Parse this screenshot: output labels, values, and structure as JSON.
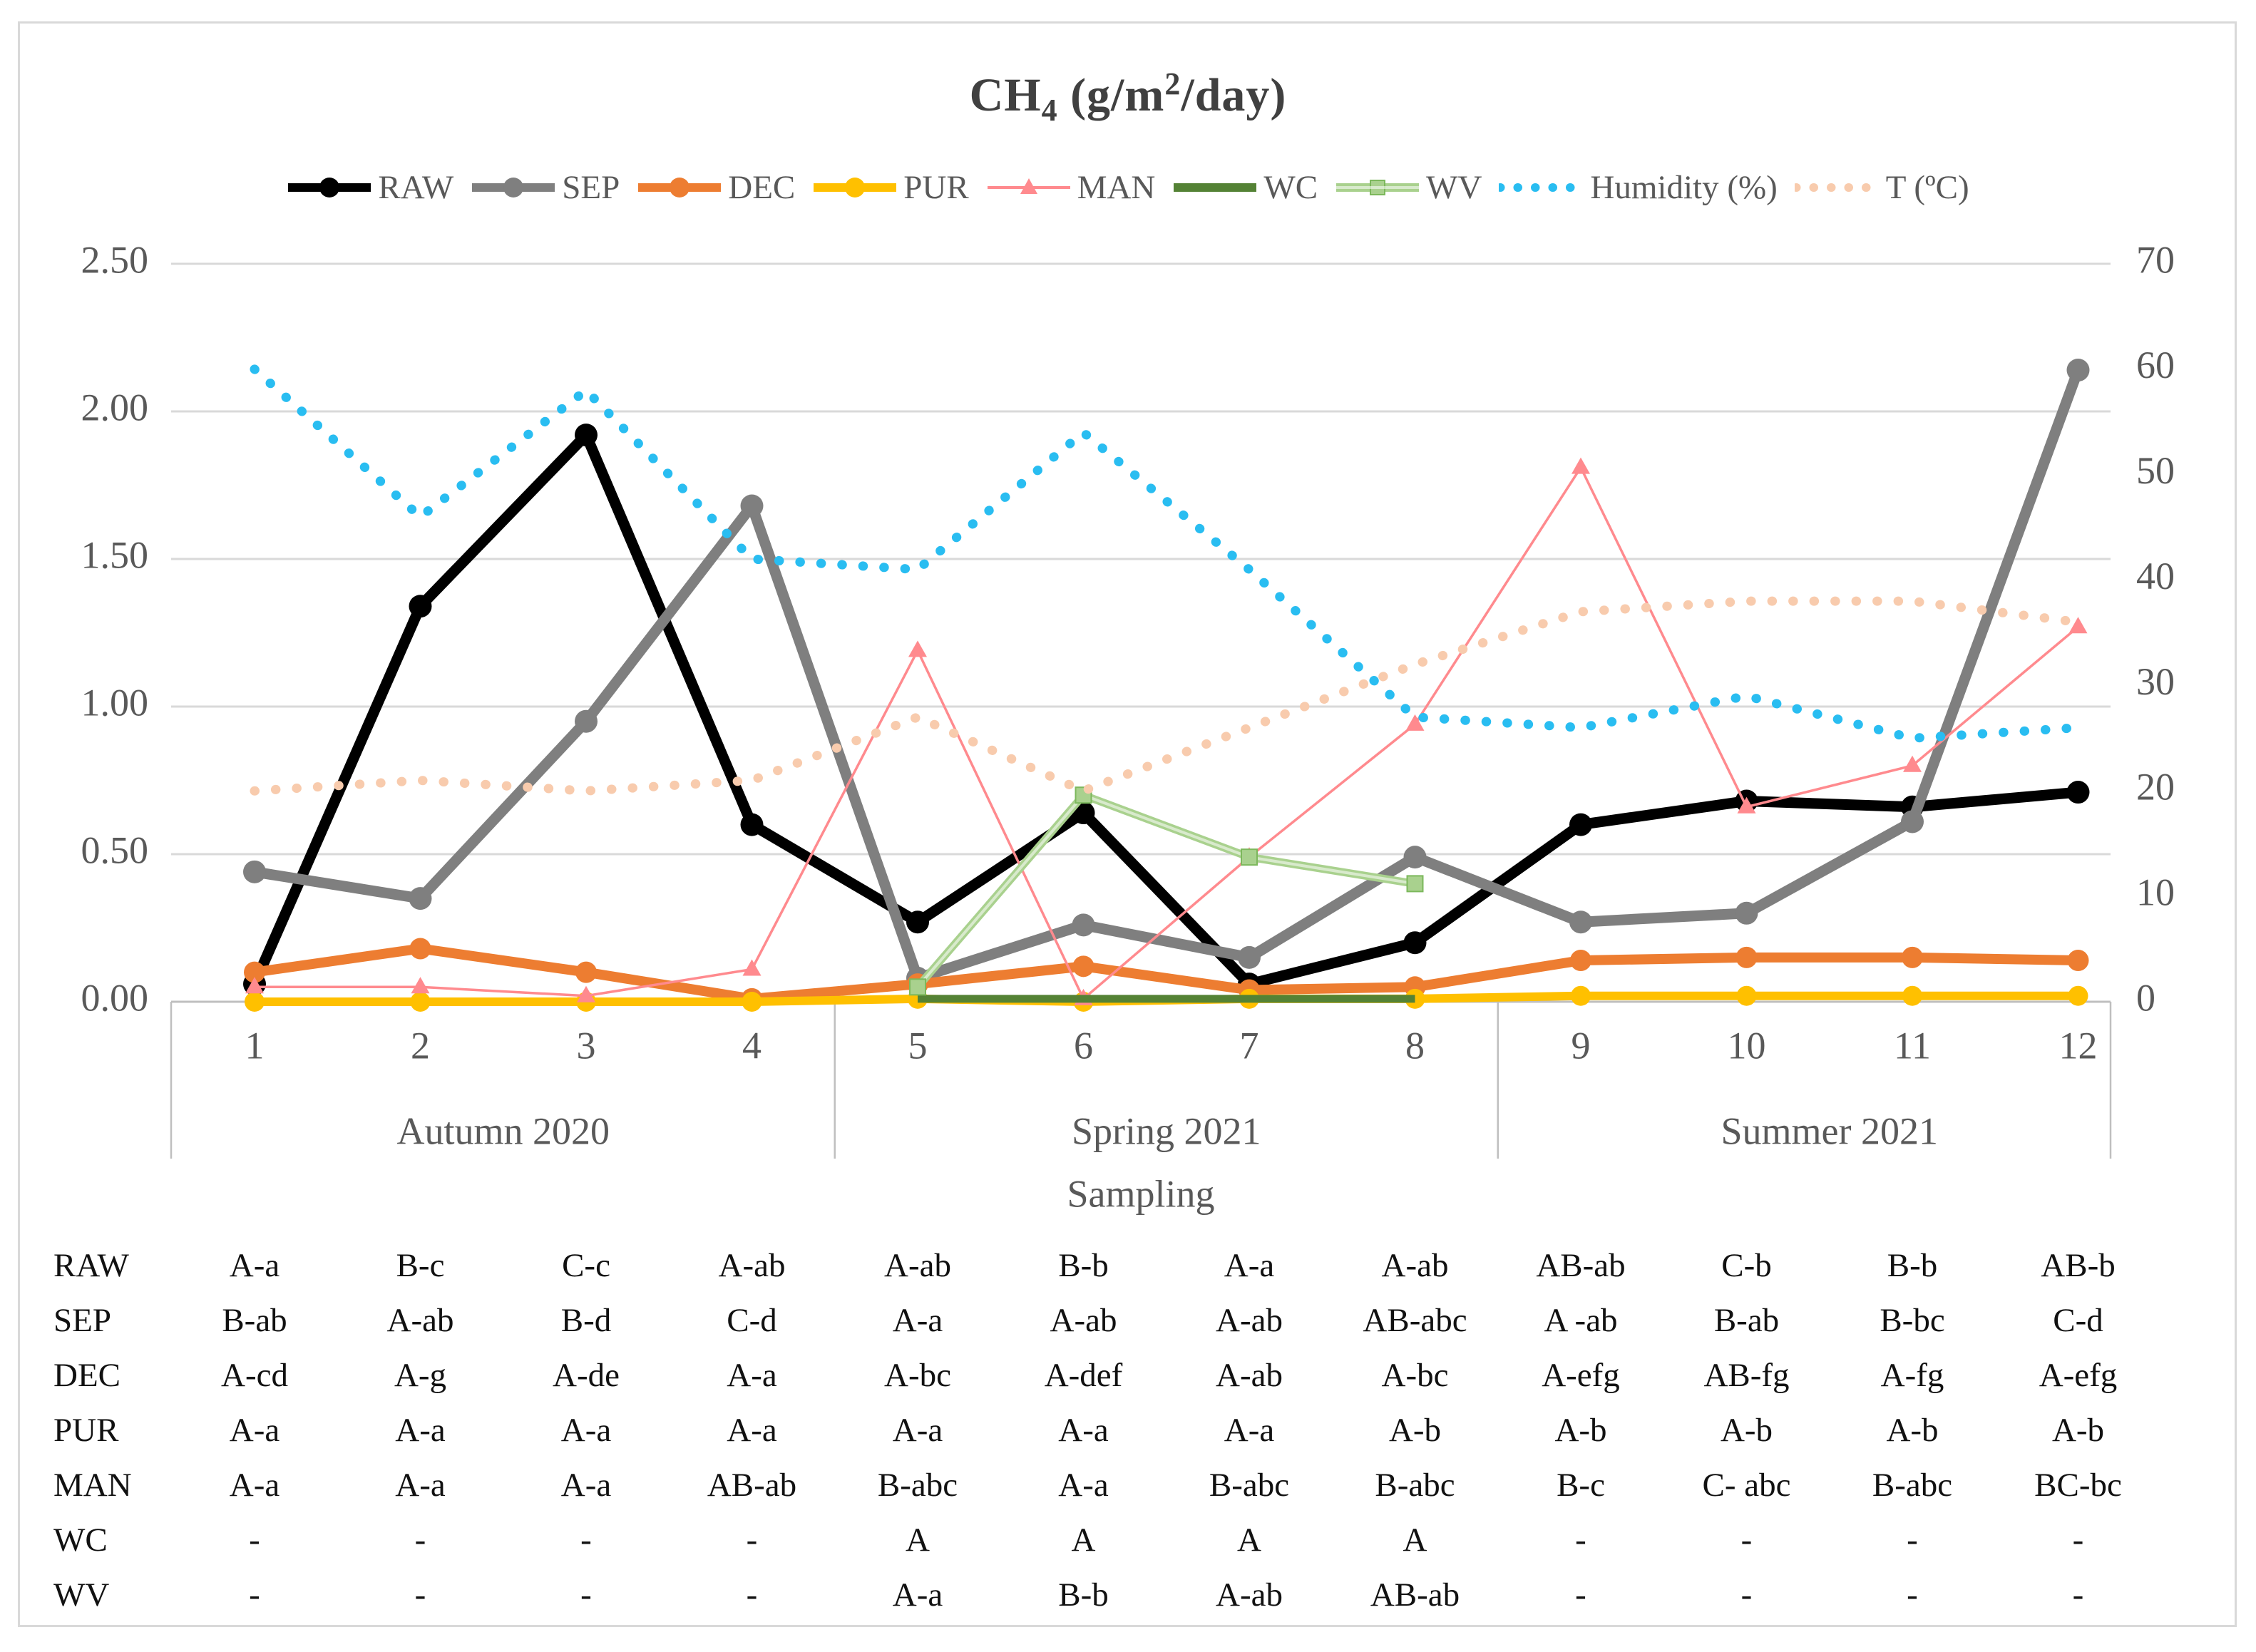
{
  "title": {
    "prefix": "CH",
    "sub": "4",
    "mid": " (g/m",
    "sup": "2",
    "suffix": "/day)"
  },
  "legend": {
    "items": [
      {
        "id": "raw",
        "label": "RAW"
      },
      {
        "id": "sep",
        "label": "SEP"
      },
      {
        "id": "dec",
        "label": "DEC"
      },
      {
        "id": "pur",
        "label": "PUR"
      },
      {
        "id": "man",
        "label": "MAN"
      },
      {
        "id": "wc",
        "label": "WC"
      },
      {
        "id": "wv",
        "label": "WV"
      },
      {
        "id": "humidity",
        "label": "Humidity (%)"
      },
      {
        "id": "t",
        "label": "T (ºC)"
      }
    ]
  },
  "axes": {
    "left_ticks": [
      "2.50",
      "2.00",
      "1.50",
      "1.00",
      "0.50",
      "0.00"
    ],
    "right_ticks": [
      "70",
      "60",
      "50",
      "40",
      "30",
      "20",
      "10",
      "0"
    ],
    "x_ticks": [
      "1",
      "2",
      "3",
      "4",
      "5",
      "6",
      "7",
      "8",
      "9",
      "10",
      "11",
      "12"
    ],
    "x_title": "Sampling",
    "groups": [
      {
        "label": "Autumn 2020",
        "from": 1,
        "to": 4
      },
      {
        "label": "Spring 2021",
        "from": 5,
        "to": 8
      },
      {
        "label": "Summer 2021",
        "from": 9,
        "to": 12
      }
    ],
    "grid_color": "#d9d9d9",
    "axis_color": "#bfbfbf",
    "tick_color": "#595959"
  },
  "chart_data": {
    "type": "line",
    "title": "CH4 (g/m2/day)",
    "xlabel": "Sampling",
    "x": [
      1,
      2,
      3,
      4,
      5,
      6,
      7,
      8,
      9,
      10,
      11,
      12
    ],
    "left_axis": {
      "range": [
        0,
        2.5
      ],
      "step": 0.5,
      "unit": "g/m2/day"
    },
    "right_axis": {
      "range": [
        0,
        70
      ],
      "step": 10,
      "unit": "% / degC"
    },
    "grid": true,
    "legend_position": "top",
    "series": [
      {
        "name": "RAW",
        "axis": "left",
        "color": "#000000",
        "style": "solid",
        "marker": "circle",
        "values": [
          0.06,
          1.34,
          1.92,
          0.6,
          0.27,
          0.64,
          0.06,
          0.2,
          0.6,
          0.68,
          0.66,
          0.71
        ]
      },
      {
        "name": "SEP",
        "axis": "left",
        "color": "#7f7f7f",
        "style": "solid",
        "marker": "circle",
        "values": [
          0.44,
          0.35,
          0.95,
          1.68,
          0.08,
          0.26,
          0.15,
          0.49,
          0.27,
          0.3,
          0.61,
          2.14
        ]
      },
      {
        "name": "DEC",
        "axis": "left",
        "color": "#ed7d31",
        "style": "solid",
        "marker": "circle",
        "values": [
          0.1,
          0.18,
          0.1,
          0.01,
          0.06,
          0.12,
          0.04,
          0.05,
          0.14,
          0.15,
          0.15,
          0.14
        ]
      },
      {
        "name": "PUR",
        "axis": "left",
        "color": "#ffc000",
        "style": "solid",
        "marker": "circle",
        "values": [
          0.0,
          0.0,
          0.0,
          0.0,
          0.01,
          0.0,
          0.01,
          0.01,
          0.02,
          0.02,
          0.02,
          0.02
        ]
      },
      {
        "name": "MAN",
        "axis": "left",
        "color": "#ff8a8e",
        "style": "solid",
        "marker": "triangle",
        "values": [
          0.05,
          0.05,
          0.02,
          0.11,
          1.19,
          0.01,
          0.49,
          0.94,
          1.81,
          0.66,
          0.8,
          1.27
        ]
      },
      {
        "name": "WC",
        "axis": "left",
        "color": "#548235",
        "style": "solid",
        "marker": "none",
        "values": [
          null,
          null,
          null,
          null,
          0.01,
          0.01,
          0.01,
          0.01,
          null,
          null,
          null,
          null
        ]
      },
      {
        "name": "WV",
        "axis": "left",
        "color": "#a9d18e",
        "style": "solid",
        "marker": "square",
        "values": [
          null,
          null,
          null,
          null,
          0.05,
          0.7,
          0.49,
          0.4,
          null,
          null,
          null,
          null
        ]
      },
      {
        "name": "Humidity (%)",
        "axis": "right",
        "color": "#29bdf1",
        "style": "dotted",
        "marker": "none",
        "values": [
          60,
          46,
          58,
          42,
          41,
          54,
          41,
          27,
          26,
          29,
          25,
          26
        ]
      },
      {
        "name": "T (degC)",
        "axis": "right",
        "color": "#f8cbad",
        "style": "dotted",
        "marker": "none",
        "values": [
          20,
          21,
          20,
          21,
          27,
          20,
          26,
          32,
          37,
          38,
          38,
          36
        ]
      }
    ]
  },
  "table": {
    "rows": [
      {
        "name": "RAW",
        "cells": [
          "A-a",
          "B-c",
          "C-c",
          "A-ab",
          "A-ab",
          "B-b",
          "A-a",
          "A-ab",
          "AB-ab",
          "C-b",
          "B-b",
          "AB-b"
        ]
      },
      {
        "name": "SEP",
        "cells": [
          "B-ab",
          "A-ab",
          "B-d",
          "C-d",
          "A-a",
          "A-ab",
          "A-ab",
          "AB-abc",
          "A -ab",
          "B-ab",
          "B-bc",
          "C-d"
        ]
      },
      {
        "name": "DEC",
        "cells": [
          "A-cd",
          "A-g",
          "A-de",
          "A-a",
          "A-bc",
          "A-def",
          "A-ab",
          "A-bc",
          "A-efg",
          "AB-fg",
          "A-fg",
          "A-efg"
        ]
      },
      {
        "name": "PUR",
        "cells": [
          "A-a",
          "A-a",
          "A-a",
          "A-a",
          "A-a",
          "A-a",
          "A-a",
          "A-b",
          "A-b",
          "A-b",
          "A-b",
          "A-b"
        ]
      },
      {
        "name": "MAN",
        "cells": [
          "A-a",
          "A-a",
          "A-a",
          "AB-ab",
          "B-abc",
          "A-a",
          "B-abc",
          "B-abc",
          "B-c",
          "C- abc",
          "B-abc",
          "BC-bc"
        ]
      },
      {
        "name": "WC",
        "cells": [
          "-",
          "-",
          "-",
          "-",
          "A",
          "A",
          "A",
          "A",
          "-",
          "-",
          "-",
          "-"
        ]
      },
      {
        "name": "WV",
        "cells": [
          "-",
          "-",
          "-",
          "-",
          "A-a",
          "B-b",
          "A-ab",
          "AB-ab",
          "-",
          "-",
          "-",
          "-"
        ]
      }
    ]
  }
}
